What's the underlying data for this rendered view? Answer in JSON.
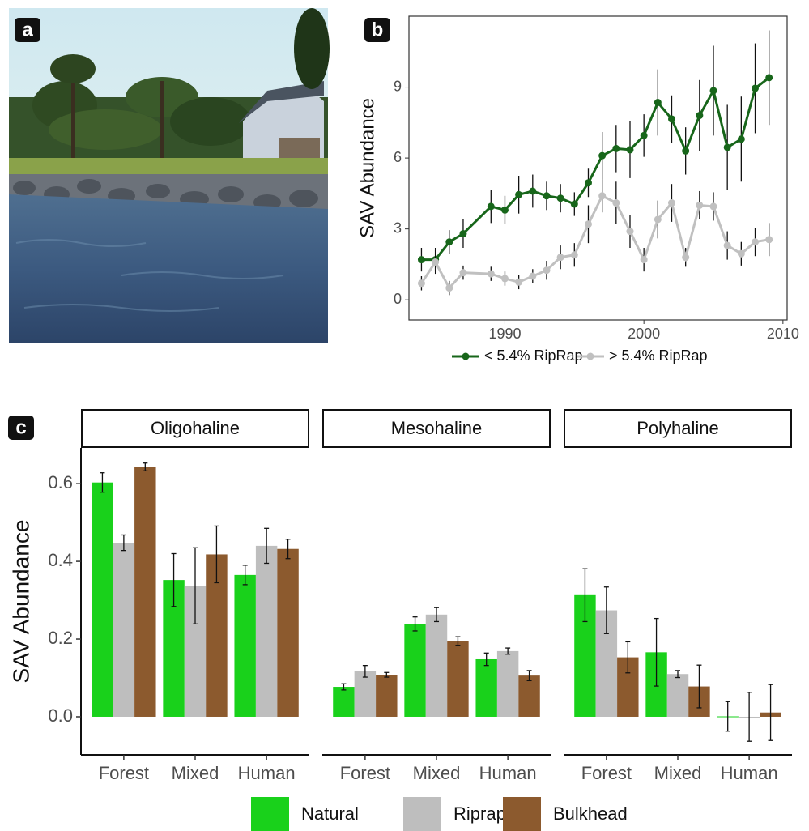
{
  "photo": {
    "panel_label": "a"
  },
  "chart_data": [
    {
      "type": "line",
      "panel_label": "b",
      "y_label": "SAV Abundance",
      "x": [
        1984,
        1985,
        1986,
        1987,
        1989,
        1990,
        1991,
        1992,
        1993,
        1994,
        1995,
        1996,
        1997,
        1998,
        1999,
        2000,
        2001,
        2002,
        2003,
        2004,
        2005,
        2006,
        2007,
        2008,
        2009
      ],
      "xlim": [
        1983.1,
        2010.3
      ],
      "xticks": [
        1990,
        2000,
        2010
      ],
      "ylim": [
        -0.85,
        12
      ],
      "yticks": [
        0,
        3,
        6,
        9
      ],
      "series": [
        {
          "name": "< 5.4% RipRap",
          "color": "#17661a",
          "values": [
            1.7,
            1.7,
            2.45,
            2.8,
            3.95,
            3.8,
            4.45,
            4.6,
            4.4,
            4.3,
            4.05,
            4.95,
            6.1,
            6.4,
            6.35,
            6.95,
            8.35,
            7.65,
            6.3,
            7.8,
            8.85,
            6.45,
            6.8,
            8.95,
            9.4
          ],
          "errors": [
            0.5,
            0.5,
            0.5,
            0.6,
            0.7,
            0.6,
            0.8,
            0.7,
            0.6,
            0.6,
            0.5,
            0.6,
            1.0,
            1.0,
            1.2,
            0.9,
            1.4,
            1.0,
            1.0,
            1.5,
            1.9,
            1.8,
            1.8,
            1.9,
            2.0
          ]
        },
        {
          "name": "> 5.4% RipRap",
          "color": "#c0c0c0",
          "values": [
            0.7,
            1.6,
            0.5,
            1.15,
            1.1,
            0.9,
            0.75,
            1.0,
            1.25,
            1.8,
            1.9,
            3.2,
            4.4,
            4.1,
            2.9,
            1.7,
            3.4,
            4.1,
            1.8,
            4.0,
            3.95,
            2.3,
            1.95,
            2.45,
            2.55
          ],
          "errors": [
            0.3,
            0.5,
            0.3,
            0.3,
            0.3,
            0.3,
            0.3,
            0.3,
            0.4,
            0.5,
            0.5,
            0.8,
            0.7,
            0.9,
            0.7,
            0.5,
            0.8,
            0.8,
            0.4,
            0.6,
            0.6,
            0.6,
            0.5,
            0.6,
            0.7
          ]
        }
      ]
    },
    {
      "type": "bar",
      "panel_label": "c",
      "y_label": "SAV Abundance",
      "facets": [
        "Oligohaline",
        "Mesohaline",
        "Polyhaline"
      ],
      "categories": [
        "Forest",
        "Mixed",
        "Human"
      ],
      "ylim": [
        -0.098,
        0.692
      ],
      "yticks": [
        {
          "value": 0,
          "label": "0.0"
        },
        0.2,
        0.4,
        0.6
      ],
      "series": [
        {
          "name": "Natural",
          "color": "#19d11b",
          "values": [
            [
              0.603,
              0.352,
              0.365
            ],
            [
              0.077,
              0.239,
              0.148
            ],
            [
              0.313,
              0.166,
              0.001
            ]
          ],
          "errors": [
            [
              0.025,
              0.068,
              0.025
            ],
            [
              0.008,
              0.018,
              0.016
            ],
            [
              0.068,
              0.087,
              0.038
            ]
          ]
        },
        {
          "name": "Riprap",
          "color": "#bebebe",
          "values": [
            [
              0.448,
              0.337,
              0.44
            ],
            [
              0.117,
              0.263,
              0.169
            ],
            [
              0.274,
              0.11,
              0
            ]
          ],
          "errors": [
            [
              0.02,
              0.098,
              0.045
            ],
            [
              0.015,
              0.018,
              0.008
            ],
            [
              0.06,
              0.009,
              0.063
            ]
          ]
        },
        {
          "name": "Bulkhead",
          "color": "#8c5a2e",
          "values": [
            [
              0.643,
              0.418,
              0.432
            ],
            [
              0.108,
              0.195,
              0.106
            ],
            [
              0.153,
              0.078,
              0.011
            ]
          ],
          "errors": [
            [
              0.01,
              0.073,
              0.025
            ],
            [
              0.006,
              0.011,
              0.013
            ],
            [
              0.04,
              0.055,
              0.072
            ]
          ]
        }
      ]
    }
  ]
}
